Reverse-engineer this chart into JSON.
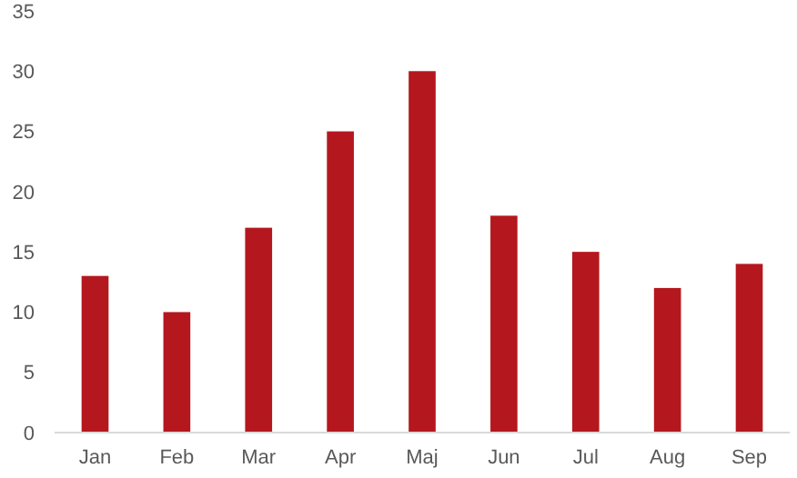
{
  "chart_data": {
    "type": "bar",
    "categories": [
      "Jan",
      "Feb",
      "Mar",
      "Apr",
      "Maj",
      "Jun",
      "Jul",
      "Aug",
      "Sep"
    ],
    "values": [
      13,
      10,
      17,
      25,
      30,
      18,
      15,
      12,
      14
    ],
    "color": "#b5171e",
    "ylim": [
      0,
      35
    ],
    "yticks": [
      0,
      5,
      10,
      15,
      20,
      25,
      30,
      35
    ],
    "grid": false
  }
}
